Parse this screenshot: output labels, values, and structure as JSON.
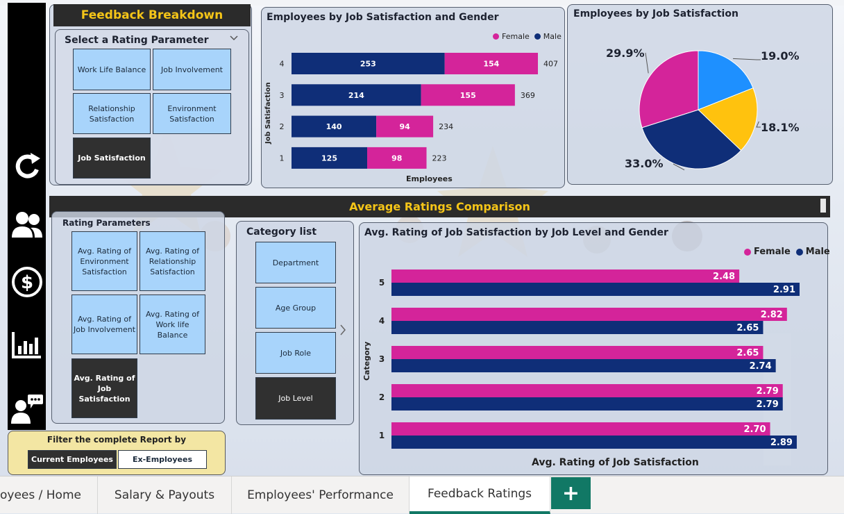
{
  "feedback": {
    "title": "Feedback Breakdown",
    "selector_title": "Select a Rating Parameter",
    "options": [
      "Work Life Balance",
      "Job Involvement",
      "Relationship Satisfaction",
      "Environment Satisfaction",
      "Job Satisfaction"
    ],
    "selected": "Job Satisfaction"
  },
  "gender_chart": {
    "title": "Employees by Job Satisfaction and Gender",
    "legend": [
      "Female",
      "Male"
    ],
    "ylabel": "Job Satisfaction",
    "xlabel": "Employees",
    "colors": {
      "female": "#d4249a",
      "male": "#0f2e78"
    },
    "chart_data": {
      "type": "bar",
      "orientation": "horizontal",
      "stacked": true,
      "categories": [
        "4",
        "3",
        "2",
        "1"
      ],
      "series": [
        {
          "name": "Male",
          "values": [
            253,
            214,
            140,
            125
          ]
        },
        {
          "name": "Female",
          "values": [
            154,
            155,
            94,
            98
          ]
        }
      ],
      "totals": [
        407,
        369,
        234,
        223
      ]
    }
  },
  "pie_chart": {
    "title": "Employees by Job Satisfaction",
    "chart_data": {
      "type": "pie",
      "values": [
        19.0,
        18.1,
        33.0,
        29.9
      ],
      "labels": [
        "19.0%",
        "18.1%",
        "33.0%",
        "29.9%"
      ],
      "colors": [
        "#1e90ff",
        "#ffc20e",
        "#0f2e78",
        "#d4249a"
      ]
    }
  },
  "comparison": {
    "title": "Average Ratings Comparison",
    "rating_params_title": "Rating Parameters",
    "rating_params": [
      "Avg. Rating of Environment Satisfaction",
      "Avg. Rating of Relationship Satisfaction",
      "Avg. Rating of Job Involvement",
      "Avg. Rating of Work life Balance",
      "Avg. Rating of Job Satisfaction"
    ],
    "category_title": "Category list",
    "categories": [
      "Department",
      "Age Group",
      "Job Role",
      "Job Level"
    ]
  },
  "level_chart": {
    "title": "Avg. Rating of Job Satisfaction by Job Level and Gender",
    "legend": [
      "Female",
      "Male"
    ],
    "ylabel": "Category",
    "xlabel": "Avg. Rating of Job Satisfaction",
    "chart_data": {
      "type": "bar",
      "orientation": "horizontal",
      "categories": [
        "5",
        "4",
        "3",
        "2",
        "1"
      ],
      "series": [
        {
          "name": "Female",
          "values": [
            2.48,
            2.82,
            2.65,
            2.79,
            2.7
          ]
        },
        {
          "name": "Male",
          "values": [
            2.91,
            2.65,
            2.74,
            2.79,
            2.89
          ]
        }
      ]
    }
  },
  "filter": {
    "title": "Filter the complete Report by",
    "options": [
      "Current Employees",
      "Ex-Employees"
    ]
  },
  "tabs": [
    "oyees / Home",
    "Salary & Payouts",
    "Employees' Performance",
    "Feedback Ratings"
  ],
  "add_tab": "+"
}
